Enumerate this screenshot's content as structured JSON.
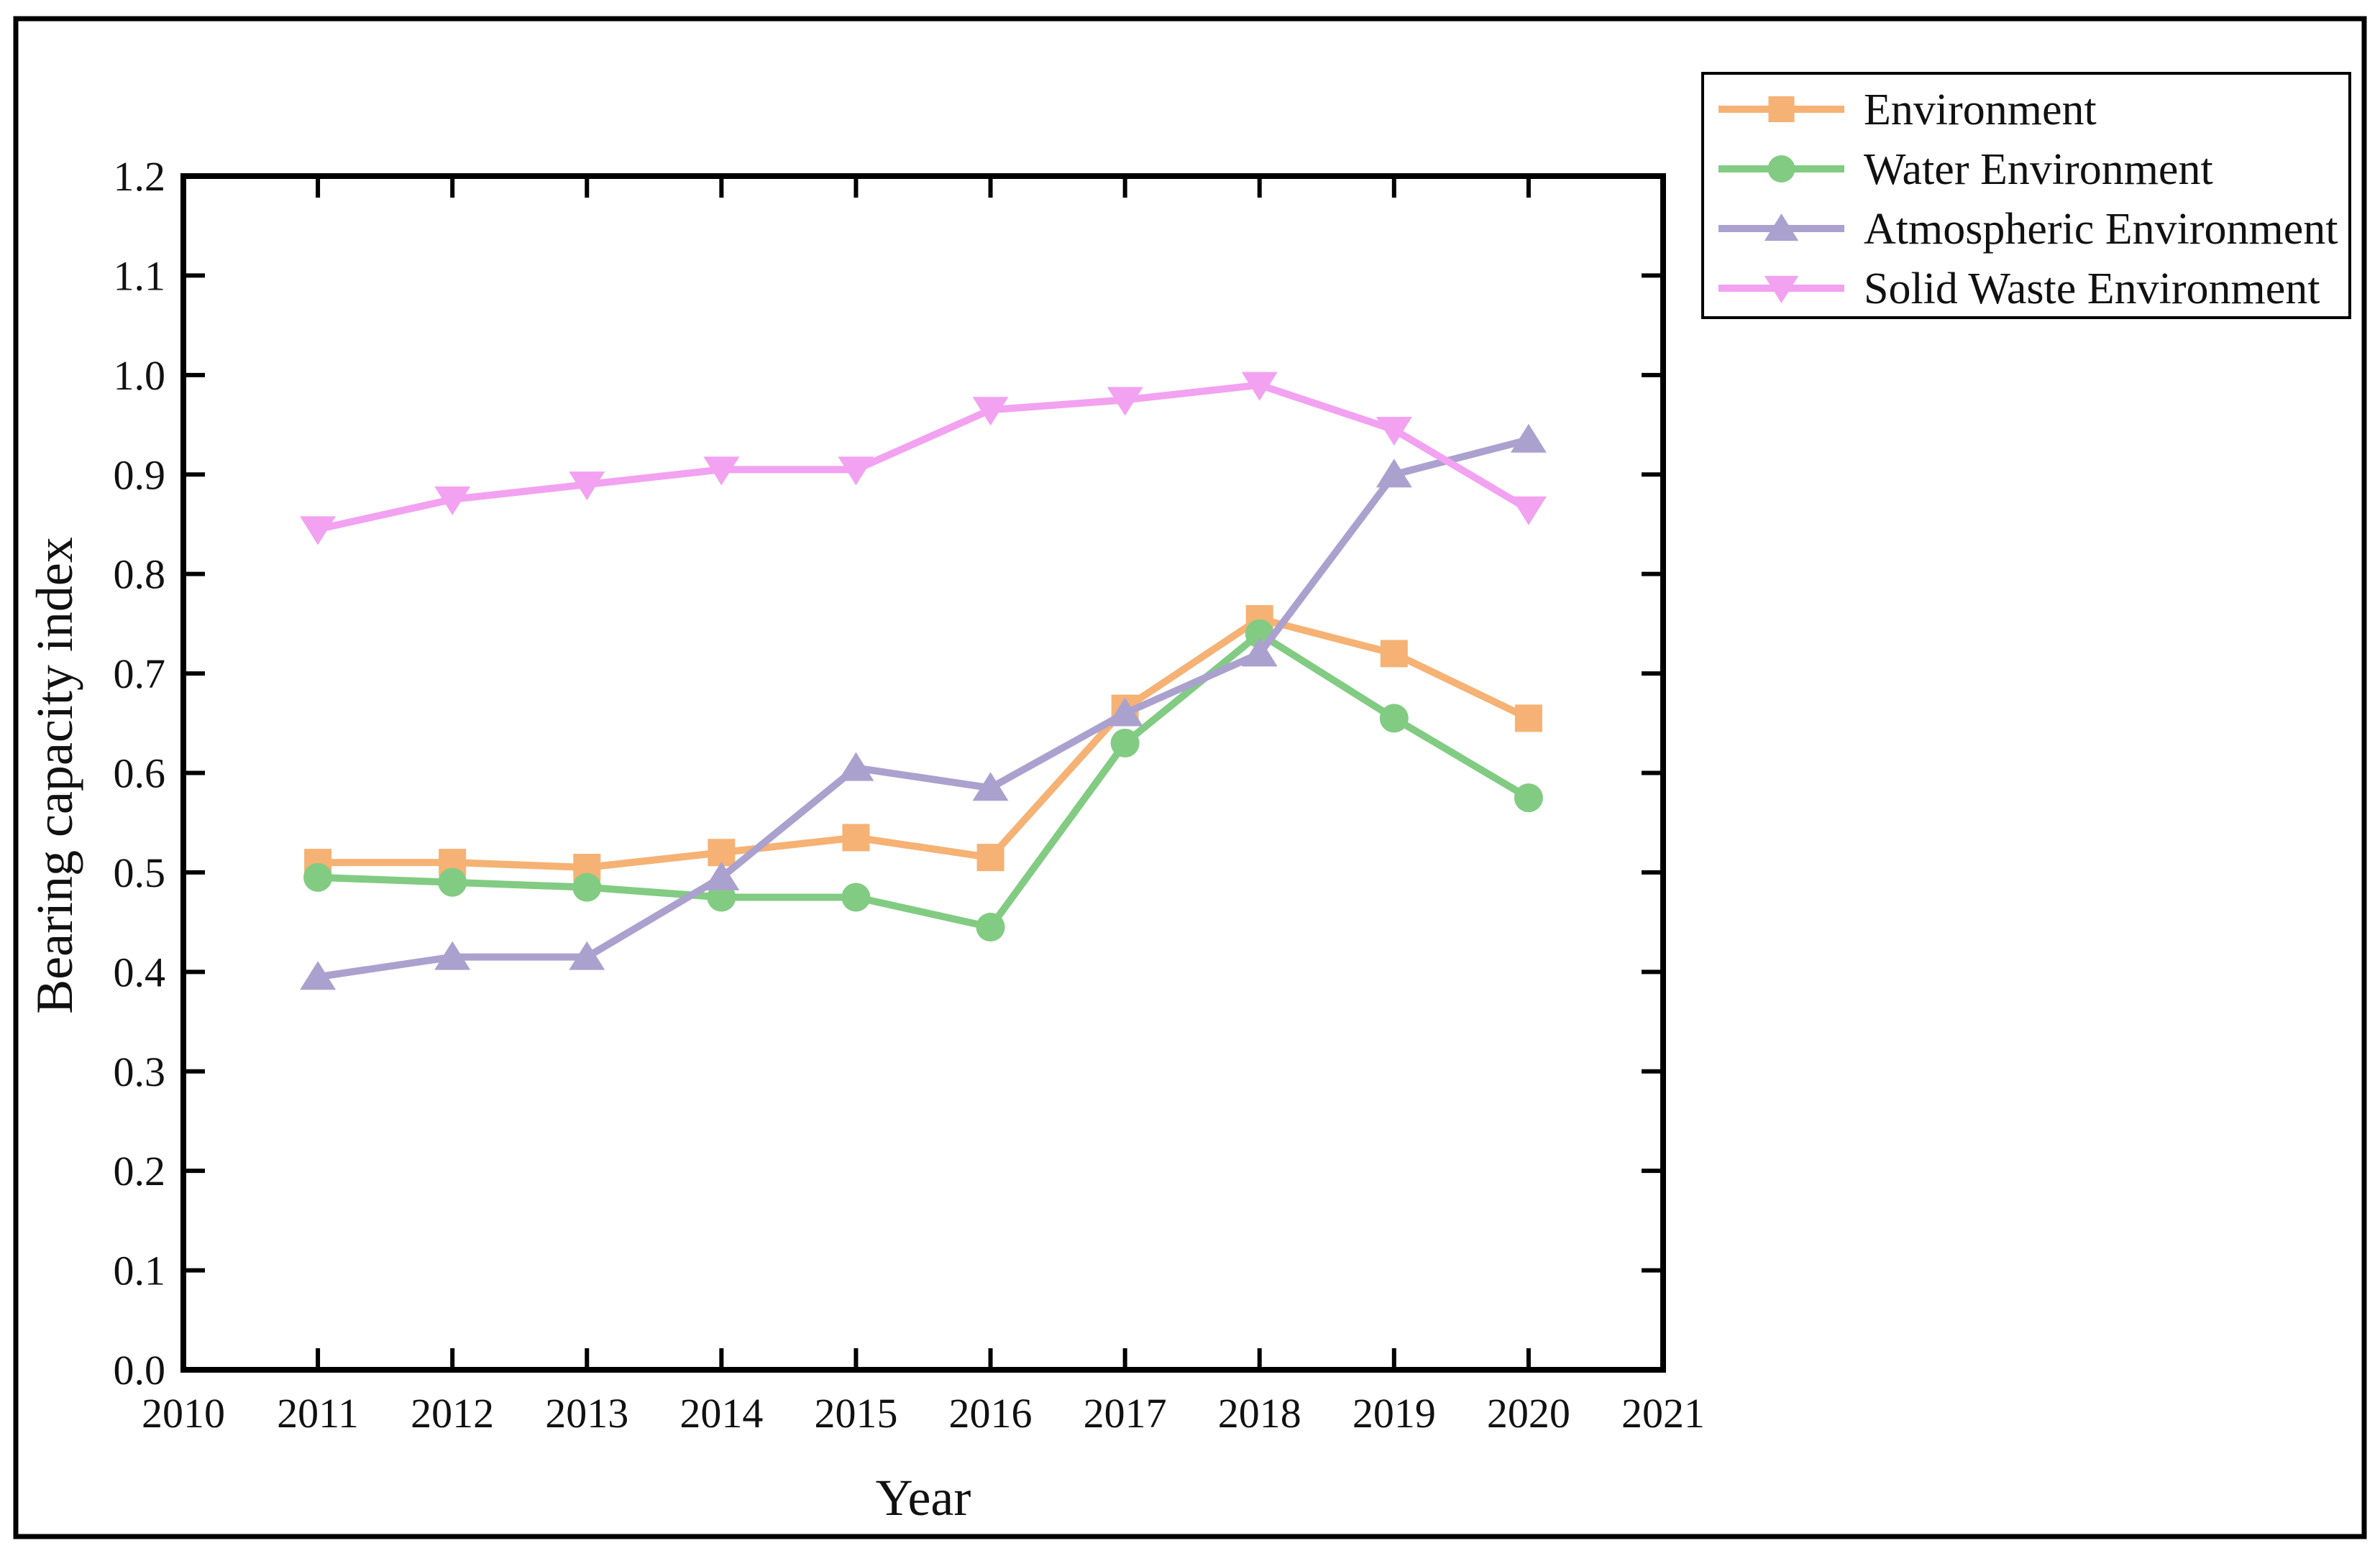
{
  "figure": {
    "background_color": "#ffffff",
    "border_color": "#000000"
  },
  "chart_data": {
    "type": "line",
    "title": "",
    "xlabel": "Year",
    "ylabel": "Bearing capacity index",
    "xlim": [
      2010,
      2021
    ],
    "ylim": [
      0.0,
      1.2
    ],
    "x_ticks": [
      2010,
      2011,
      2012,
      2013,
      2014,
      2015,
      2016,
      2017,
      2018,
      2019,
      2020,
      2021
    ],
    "y_ticks": [
      0.0,
      0.1,
      0.2,
      0.3,
      0.4,
      0.5,
      0.6,
      0.7,
      0.8,
      0.9,
      1.0,
      1.1,
      1.2
    ],
    "grid": false,
    "legend_position": "outside-top-right",
    "x": [
      2011,
      2012,
      2013,
      2014,
      2015,
      2016,
      2017,
      2018,
      2019,
      2020
    ],
    "series": [
      {
        "name": "Environment",
        "color": "#F5B274",
        "marker": "square",
        "values": [
          0.51,
          0.51,
          0.505,
          0.52,
          0.535,
          0.515,
          0.665,
          0.755,
          0.72,
          0.655
        ]
      },
      {
        "name": "Water Environment",
        "color": "#82CB82",
        "marker": "circle",
        "values": [
          0.495,
          0.49,
          0.485,
          0.475,
          0.475,
          0.445,
          0.63,
          0.74,
          0.655,
          0.575
        ]
      },
      {
        "name": "Atmospheric Environment",
        "color": "#ABA1CE",
        "marker": "triangle-up",
        "values": [
          0.395,
          0.415,
          0.415,
          0.495,
          0.605,
          0.585,
          0.66,
          0.72,
          0.9,
          0.935
        ]
      },
      {
        "name": "Solid Waste Environment",
        "color": "#F2A2F0",
        "marker": "triangle-down",
        "values": [
          0.845,
          0.875,
          0.89,
          0.905,
          0.905,
          0.965,
          0.975,
          0.99,
          0.945,
          0.865
        ]
      }
    ]
  }
}
